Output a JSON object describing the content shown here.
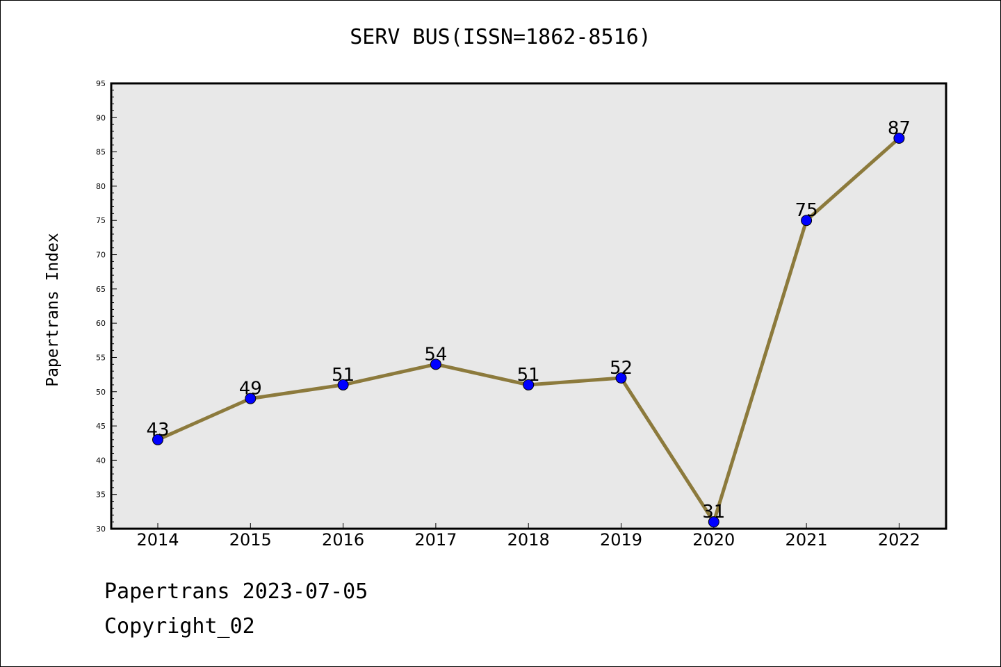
{
  "chart_data": {
    "type": "line",
    "title": "SERV BUS(ISSN=1862-8516)",
    "xlabel": "",
    "ylabel": "Papertrans Index",
    "categories": [
      "2014",
      "2015",
      "2016",
      "2017",
      "2018",
      "2019",
      "2020",
      "2021",
      "2022"
    ],
    "series": [
      {
        "values": [
          43,
          49,
          51,
          54,
          51,
          52,
          31,
          75,
          87
        ]
      }
    ],
    "data_labels": [
      "43",
      "49",
      "51",
      "54",
      "51",
      "52",
      "31",
      "75",
      "87"
    ],
    "ylim": [
      30,
      95
    ],
    "y_ticks": [
      "30",
      "35",
      "40",
      "45",
      "50",
      "55",
      "60",
      "65",
      "70",
      "75",
      "80",
      "85",
      "90",
      "95"
    ],
    "grid": false,
    "legend": "none",
    "colors": {
      "line": "#8c7a3c",
      "marker": "#0000ff",
      "plot_background": "#e8e8e8"
    }
  },
  "footer": {
    "date_line": "Papertrans 2023-07-05",
    "copyright": "Copyright_02"
  }
}
